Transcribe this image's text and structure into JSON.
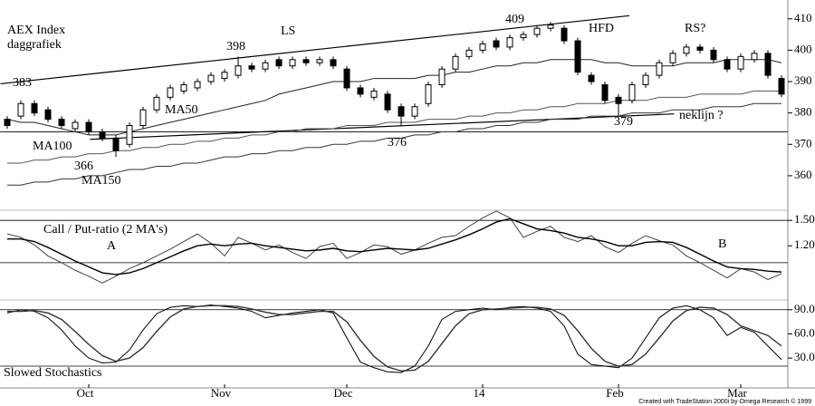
{
  "chart_data": [
    {
      "type": "candlestick",
      "title": "AEX Index",
      "subtitle": "daggrafiek",
      "open": [
        378,
        379,
        383,
        381,
        378,
        375,
        377,
        374,
        372,
        370,
        376,
        381,
        385,
        387,
        388,
        390,
        391,
        392,
        395,
        394,
        397,
        395,
        397,
        396,
        397,
        394,
        388,
        385,
        386,
        382,
        379,
        383,
        389,
        394,
        398,
        400,
        403,
        401,
        404,
        405,
        407,
        407,
        403,
        392,
        389,
        385,
        384,
        389,
        392,
        396,
        399,
        401,
        400,
        397,
        394,
        397,
        399,
        391
      ],
      "high": [
        379,
        384,
        384,
        382,
        379,
        378,
        378,
        375,
        373,
        377,
        382,
        386,
        389,
        390,
        391,
        393,
        394,
        398,
        396,
        397,
        398,
        398,
        398,
        398,
        398,
        395,
        389,
        388,
        387,
        383,
        383,
        390,
        395,
        399,
        401,
        403,
        404,
        405,
        406,
        408,
        409,
        408,
        404,
        393,
        390,
        386,
        390,
        393,
        397,
        400,
        402,
        402,
        401,
        398,
        399,
        400,
        400,
        392
      ],
      "low": [
        375,
        378,
        379,
        377,
        375,
        374,
        373,
        371,
        366,
        369,
        375,
        380,
        384,
        386,
        387,
        389,
        390,
        391,
        393,
        393,
        394,
        394,
        395,
        395,
        394,
        387,
        385,
        384,
        380,
        376,
        378,
        382,
        388,
        393,
        397,
        399,
        400,
        400,
        403,
        404,
        406,
        402,
        392,
        389,
        383,
        379,
        383,
        388,
        391,
        395,
        398,
        399,
        396,
        393,
        393,
        396,
        391,
        385
      ],
      "close": [
        376,
        383,
        380,
        378,
        376,
        377,
        374,
        372,
        368,
        376,
        381,
        385,
        388,
        389,
        390,
        392,
        393,
        395,
        394,
        396,
        395,
        397,
        396,
        397,
        395,
        388,
        386,
        387,
        381,
        379,
        382,
        389,
        394,
        398,
        400,
        402,
        401,
        404,
        405,
        407,
        408,
        403,
        393,
        390,
        384,
        383,
        389,
        392,
        396,
        399,
        401,
        400,
        397,
        394,
        398,
        399,
        392,
        386
      ],
      "candle_color": "#000000",
      "series": [
        {
          "name": "MA50",
          "color": "#222222",
          "values": [
            378,
            377,
            377,
            376,
            375,
            374,
            373,
            373,
            373,
            374,
            375,
            376,
            377,
            378,
            379,
            380,
            381,
            382,
            383,
            384,
            386,
            387,
            388,
            389,
            390,
            390,
            390,
            391,
            391,
            391,
            391,
            392,
            392,
            393,
            393,
            394,
            395,
            395,
            396,
            396,
            397,
            397,
            397,
            397,
            396,
            396,
            395,
            395,
            395,
            395,
            396,
            396,
            396,
            397,
            397,
            397,
            397,
            396
          ]
        },
        {
          "name": "MA100",
          "color": "#555555",
          "values": [
            364,
            364,
            365,
            365,
            366,
            366,
            367,
            367,
            368,
            368,
            369,
            369,
            370,
            370,
            371,
            371,
            372,
            372,
            373,
            373,
            374,
            374,
            375,
            375,
            375,
            376,
            376,
            376,
            377,
            377,
            377,
            378,
            378,
            378,
            379,
            379,
            380,
            380,
            381,
            381,
            382,
            382,
            383,
            383,
            383,
            384,
            384,
            384,
            385,
            385,
            385,
            386,
            386,
            386,
            386,
            387,
            387,
            387
          ]
        },
        {
          "name": "MA150",
          "color": "#333333",
          "values": [
            357,
            357,
            358,
            358,
            359,
            359,
            360,
            360,
            361,
            362,
            362,
            363,
            363,
            364,
            364,
            365,
            366,
            366,
            367,
            367,
            368,
            368,
            369,
            369,
            370,
            370,
            371,
            371,
            372,
            372,
            373,
            373,
            374,
            374,
            375,
            375,
            376,
            376,
            377,
            377,
            378,
            378,
            378,
            379,
            379,
            379,
            380,
            380,
            380,
            381,
            381,
            381,
            382,
            382,
            382,
            383,
            383,
            383
          ]
        }
      ],
      "trendlines": [
        {
          "x": [
            -0.5,
            45.8
          ],
          "y": [
            389.3,
            411
          ]
        },
        {
          "x": [
            6.1,
            49.1
          ],
          "y": [
            371.6,
            379.7
          ]
        }
      ],
      "hlines": [
        374
      ],
      "annotations": [
        "383",
        "398",
        "LS",
        "409",
        "HFD",
        "RS?",
        "376",
        "379",
        "neklijn ?",
        "366"
      ],
      "ylim": [
        349,
        416
      ],
      "yticks": [
        360,
        370,
        380,
        390,
        400,
        410
      ]
    },
    {
      "type": "line",
      "title": "Call / Put-ratio (2 MA's)",
      "series": [
        {
          "color": "#444444",
          "values": [
            1.34,
            1.3,
            1.21,
            1.08,
            1.0,
            0.91,
            0.84,
            0.76,
            0.84,
            0.93,
            1.0,
            1.08,
            1.16,
            1.25,
            1.34,
            1.23,
            1.08,
            1.3,
            1.23,
            1.15,
            1.21,
            1.12,
            1.05,
            1.19,
            1.23,
            1.05,
            1.12,
            1.21,
            1.19,
            1.1,
            1.15,
            1.23,
            1.3,
            1.32,
            1.43,
            1.53,
            1.61,
            1.53,
            1.3,
            1.37,
            1.43,
            1.3,
            1.25,
            1.32,
            1.19,
            1.12,
            1.23,
            1.32,
            1.26,
            1.21,
            1.08,
            1.0,
            0.91,
            0.82,
            0.93,
            0.89,
            0.8,
            0.87
          ]
        },
        {
          "color": "#000000",
          "values": [
            1.28,
            1.28,
            1.25,
            1.18,
            1.1,
            1.02,
            0.95,
            0.88,
            0.86,
            0.88,
            0.93,
            1.0,
            1.07,
            1.14,
            1.2,
            1.22,
            1.2,
            1.22,
            1.23,
            1.2,
            1.18,
            1.16,
            1.14,
            1.15,
            1.17,
            1.14,
            1.13,
            1.15,
            1.17,
            1.16,
            1.15,
            1.17,
            1.22,
            1.27,
            1.33,
            1.4,
            1.48,
            1.52,
            1.46,
            1.4,
            1.38,
            1.35,
            1.3,
            1.28,
            1.25,
            1.2,
            1.2,
            1.24,
            1.25,
            1.24,
            1.18,
            1.1,
            1.02,
            0.95,
            0.93,
            0.92,
            0.9,
            0.89
          ]
        }
      ],
      "hlines": [
        1.5,
        1
      ],
      "annotations": [
        "A",
        "B"
      ],
      "ylim": [
        0.57,
        1.62
      ],
      "yticks": [
        {
          "value": 1.5,
          "label": "1.50"
        },
        {
          "value": 1.2,
          "label": "1.20"
        }
      ]
    },
    {
      "type": "line",
      "title": "Slowed Stochastics",
      "categories": [
        null,
        null,
        null,
        null,
        null,
        null,
        "Oct",
        null,
        null,
        null,
        null,
        null,
        null,
        null,
        null,
        null,
        "Nov",
        null,
        null,
        null,
        null,
        null,
        null,
        null,
        null,
        "Dec",
        null,
        null,
        null,
        null,
        null,
        null,
        null,
        null,
        null,
        "14",
        null,
        null,
        null,
        null,
        null,
        null,
        null,
        null,
        null,
        "Feb",
        null,
        null,
        null,
        null,
        null,
        null,
        null,
        null,
        "Mar",
        null,
        null,
        null
      ],
      "series": [
        {
          "color": "#000000",
          "values": [
            86,
            90,
            88,
            80,
            65,
            45,
            30,
            24,
            25,
            40,
            65,
            85,
            93,
            95,
            94,
            96,
            94,
            92,
            88,
            80,
            83,
            86,
            88,
            90,
            86,
            55,
            25,
            18,
            13,
            12,
            20,
            45,
            78,
            88,
            90,
            92,
            90,
            93,
            94,
            92,
            88,
            70,
            35,
            22,
            20,
            18,
            30,
            55,
            80,
            92,
            95,
            90,
            80,
            58,
            68,
            62,
            45,
            28
          ]
        },
        {
          "color": "#333333",
          "values": [
            88,
            88,
            89,
            86,
            78,
            63,
            47,
            33,
            26,
            30,
            43,
            63,
            81,
            91,
            94,
            95,
            95,
            94,
            91,
            87,
            84,
            84,
            86,
            88,
            88,
            75,
            52,
            32,
            19,
            14,
            15,
            26,
            48,
            70,
            85,
            90,
            91,
            92,
            93,
            93,
            91,
            83,
            64,
            42,
            26,
            20,
            22,
            35,
            55,
            76,
            89,
            93,
            92,
            84,
            70,
            64,
            58,
            45
          ]
        }
      ],
      "hlines": [
        90,
        20
      ],
      "ylim": [
        -7,
        101
      ],
      "yticks": [
        {
          "value": 90,
          "label": "90.0"
        },
        {
          "value": 60,
          "label": "60.0"
        },
        {
          "value": 30,
          "label": "30.0"
        }
      ]
    }
  ],
  "footer": "Created with TradeStation 2000i by Omega Research © 1999"
}
